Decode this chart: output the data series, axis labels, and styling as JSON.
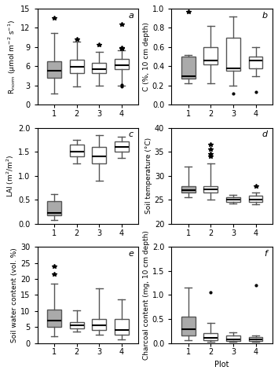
{
  "panels": [
    {
      "label": "a",
      "ylabel": "R$_{norm}$ (μmol m$^{-2}$ s$^{-1}$)",
      "ylim": [
        0,
        15
      ],
      "yticks": [
        0,
        3,
        6,
        9,
        12,
        15
      ],
      "boxes": [
        {
          "plot": 1,
          "q1": 4.2,
          "median": 5.3,
          "q3": 6.8,
          "whislo": 1.8,
          "whishi": 11.2,
          "fliers": [
            13.5
          ],
          "filled": true
        },
        {
          "plot": 2,
          "q1": 5.0,
          "median": 5.9,
          "q3": 7.0,
          "whislo": 2.8,
          "whishi": 9.8,
          "fliers": [
            10.2
          ],
          "filled": false
        },
        {
          "plot": 3,
          "q1": 5.0,
          "median": 5.6,
          "q3": 6.5,
          "whislo": 3.0,
          "whishi": 8.2,
          "fliers": [
            9.3
          ],
          "filled": false
        },
        {
          "plot": 4,
          "q1": 5.5,
          "median": 6.2,
          "q3": 7.2,
          "whislo": 3.0,
          "whishi": 8.5,
          "fliers": [
            12.5,
            8.8,
            8.9,
            2.8,
            3.1
          ],
          "filled": false
        }
      ]
    },
    {
      "label": "b",
      "ylabel": "C (%, 10 cm depth)",
      "ylim": [
        0,
        1
      ],
      "yticks": [
        0,
        0.2,
        0.4,
        0.6,
        0.8,
        1.0
      ],
      "boxes": [
        {
          "plot": 1,
          "q1": 0.27,
          "median": 0.3,
          "q3": 0.5,
          "whislo": 0.22,
          "whishi": 0.52,
          "fliers": [
            0.97
          ],
          "filled": true
        },
        {
          "plot": 2,
          "q1": 0.42,
          "median": 0.46,
          "q3": 0.6,
          "whislo": 0.22,
          "whishi": 0.82,
          "fliers": [],
          "filled": false
        },
        {
          "plot": 3,
          "q1": 0.35,
          "median": 0.38,
          "q3": 0.7,
          "whislo": 0.2,
          "whishi": 0.92,
          "fliers": [
            0.12
          ],
          "filled": false
        },
        {
          "plot": 4,
          "q1": 0.38,
          "median": 0.46,
          "q3": 0.5,
          "whislo": 0.3,
          "whishi": 0.6,
          "fliers": [
            0.13
          ],
          "filled": false
        }
      ]
    },
    {
      "label": "c",
      "ylabel": "LAI (m$^{2}$/m$^{2}$)",
      "ylim": [
        0,
        2
      ],
      "yticks": [
        0,
        0.5,
        1.0,
        1.5,
        2.0
      ],
      "boxes": [
        {
          "plot": 1,
          "q1": 0.18,
          "median": 0.22,
          "q3": 0.48,
          "whislo": 0.08,
          "whishi": 0.62,
          "fliers": [],
          "filled": true
        },
        {
          "plot": 2,
          "q1": 1.4,
          "median": 1.5,
          "q3": 1.65,
          "whislo": 1.25,
          "whishi": 1.75,
          "fliers": [],
          "filled": false
        },
        {
          "plot": 3,
          "q1": 1.25,
          "median": 1.4,
          "q3": 1.6,
          "whislo": 0.9,
          "whishi": 1.85,
          "fliers": [],
          "filled": false
        },
        {
          "plot": 4,
          "q1": 1.5,
          "median": 1.6,
          "q3": 1.72,
          "whislo": 1.38,
          "whishi": 1.82,
          "fliers": [],
          "filled": false
        }
      ]
    },
    {
      "label": "d",
      "ylabel": "Soil temperature (°C)",
      "ylim": [
        20,
        40
      ],
      "yticks": [
        20,
        25,
        30,
        35,
        40
      ],
      "boxes": [
        {
          "plot": 1,
          "q1": 26.5,
          "median": 27.0,
          "q3": 27.8,
          "whislo": 25.5,
          "whishi": 32.0,
          "fliers": [],
          "filled": true
        },
        {
          "plot": 2,
          "q1": 26.5,
          "median": 27.2,
          "q3": 27.8,
          "whislo": 25.0,
          "whishi": 32.5,
          "fliers": [
            34.0,
            34.5,
            35.5,
            36.5
          ],
          "filled": false
        },
        {
          "plot": 3,
          "q1": 24.5,
          "median": 25.0,
          "q3": 25.5,
          "whislo": 24.2,
          "whishi": 26.0,
          "fliers": [],
          "filled": false
        },
        {
          "plot": 4,
          "q1": 24.5,
          "median": 25.0,
          "q3": 25.8,
          "whislo": 24.0,
          "whishi": 26.5,
          "fliers": [
            27.8
          ],
          "filled": false
        }
      ]
    },
    {
      "label": "e",
      "ylabel": "Soil water content (vol. %)",
      "ylim": [
        0,
        30
      ],
      "yticks": [
        0,
        5,
        10,
        15,
        20,
        25,
        30
      ],
      "boxes": [
        {
          "plot": 1,
          "q1": 5.0,
          "median": 7.0,
          "q3": 10.5,
          "whislo": 2.0,
          "whishi": 18.5,
          "fliers": [
            21.5,
            24.0
          ],
          "filled": true
        },
        {
          "plot": 2,
          "q1": 4.5,
          "median": 5.5,
          "q3": 6.5,
          "whislo": 3.5,
          "whishi": 10.2,
          "fliers": [],
          "filled": false
        },
        {
          "plot": 3,
          "q1": 4.0,
          "median": 5.5,
          "q3": 7.5,
          "whislo": 2.5,
          "whishi": 17.0,
          "fliers": [],
          "filled": false
        },
        {
          "plot": 4,
          "q1": 2.5,
          "median": 4.0,
          "q3": 7.5,
          "whislo": 1.0,
          "whishi": 13.5,
          "fliers": [],
          "filled": false
        }
      ]
    },
    {
      "label": "f",
      "ylabel": "Charcoal content (mg, 10 cm depth)",
      "ylim": [
        0,
        2
      ],
      "yticks": [
        0,
        0.5,
        1.0,
        1.5,
        2.0
      ],
      "boxes": [
        {
          "plot": 1,
          "q1": 0.15,
          "median": 0.28,
          "q3": 0.55,
          "whislo": 0.05,
          "whishi": 1.15,
          "fliers": [],
          "filled": true
        },
        {
          "plot": 2,
          "q1": 0.05,
          "median": 0.1,
          "q3": 0.2,
          "whislo": 0.02,
          "whishi": 0.42,
          "fliers": [
            1.05
          ],
          "filled": false
        },
        {
          "plot": 3,
          "q1": 0.04,
          "median": 0.08,
          "q3": 0.15,
          "whislo": 0.02,
          "whishi": 0.22,
          "fliers": [],
          "filled": false
        },
        {
          "plot": 4,
          "q1": 0.04,
          "median": 0.08,
          "q3": 0.12,
          "whislo": 0.02,
          "whishi": 0.15,
          "fliers": [
            1.2
          ],
          "filled": false
        }
      ]
    }
  ],
  "fill_color": "#aaaaaa",
  "box_color": "white",
  "edge_color": "#555555",
  "flier_marker": "*",
  "dot_flier_marker": ".",
  "xlabel_bottom": "Plot",
  "xticks": [
    1,
    2,
    3,
    4
  ]
}
